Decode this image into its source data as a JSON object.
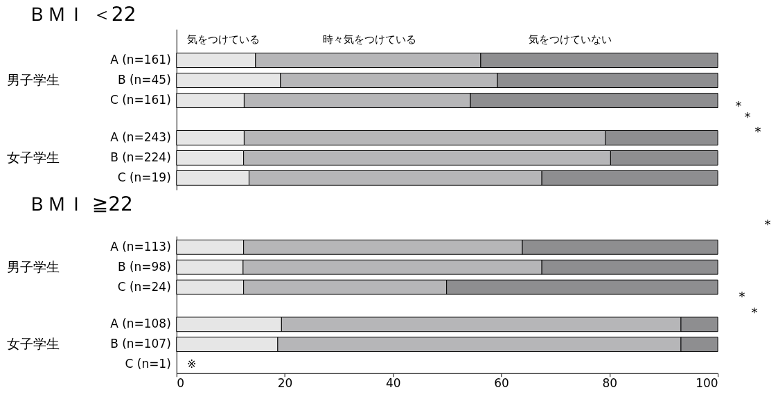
{
  "chart_data": [
    {
      "type": "bar",
      "orientation": "horizontal",
      "stacked": true,
      "title": "ＢＭＩ ＜22",
      "legend": "top",
      "tick_labels": false,
      "grid": false,
      "categories": [
        "A (n=161)",
        "B (n=45)",
        "C (n=161)",
        "A (n=243)",
        "B (n=224)",
        "C (n=19)"
      ],
      "xlim": [
        0,
        100
      ],
      "series": [
        {
          "name": "気をつけている",
          "color": "#e6e6e6",
          "values": [
            14.6,
            19.2,
            12.5,
            12.5,
            12.4,
            13.4
          ]
        },
        {
          "name": "時々気をつけている",
          "color": "#b6b6b8",
          "values": [
            41.6,
            40.1,
            41.8,
            66.7,
            67.8,
            54.1
          ]
        },
        {
          "name": "気をつけていない",
          "color": "#8e8e90",
          "values": [
            43.8,
            40.7,
            45.7,
            20.8,
            19.8,
            32.5
          ]
        }
      ],
      "annotations": [
        "男子学生",
        "女子学生",
        "*",
        "*",
        "*"
      ]
    },
    {
      "type": "bar",
      "orientation": "horizontal",
      "stacked": true,
      "title": "ＢＭＩ ≧22",
      "tick_labels": "x",
      "grid": false,
      "categories": [
        "A (n=113)",
        "B (n=98)",
        "C (n=24)",
        "A (n=108)",
        "B (n=107)",
        "C (n=1)"
      ],
      "xlim": [
        0,
        100
      ],
      "xticks": [
        0,
        20,
        40,
        60,
        80,
        100
      ],
      "series": [
        {
          "color": "#e6e6e6",
          "values": [
            12.4,
            12.3,
            12.4,
            19.4,
            18.7,
            null
          ]
        },
        {
          "color": "#b6b6b8",
          "values": [
            51.5,
            55.2,
            37.5,
            73.8,
            74.5,
            null
          ]
        },
        {
          "color": "#8e8e90",
          "values": [
            36.1,
            32.5,
            50.1,
            6.8,
            6.8,
            null
          ]
        }
      ],
      "annotations": [
        "男子学生",
        "女子学生",
        "※",
        "*",
        "*",
        "*"
      ]
    }
  ]
}
